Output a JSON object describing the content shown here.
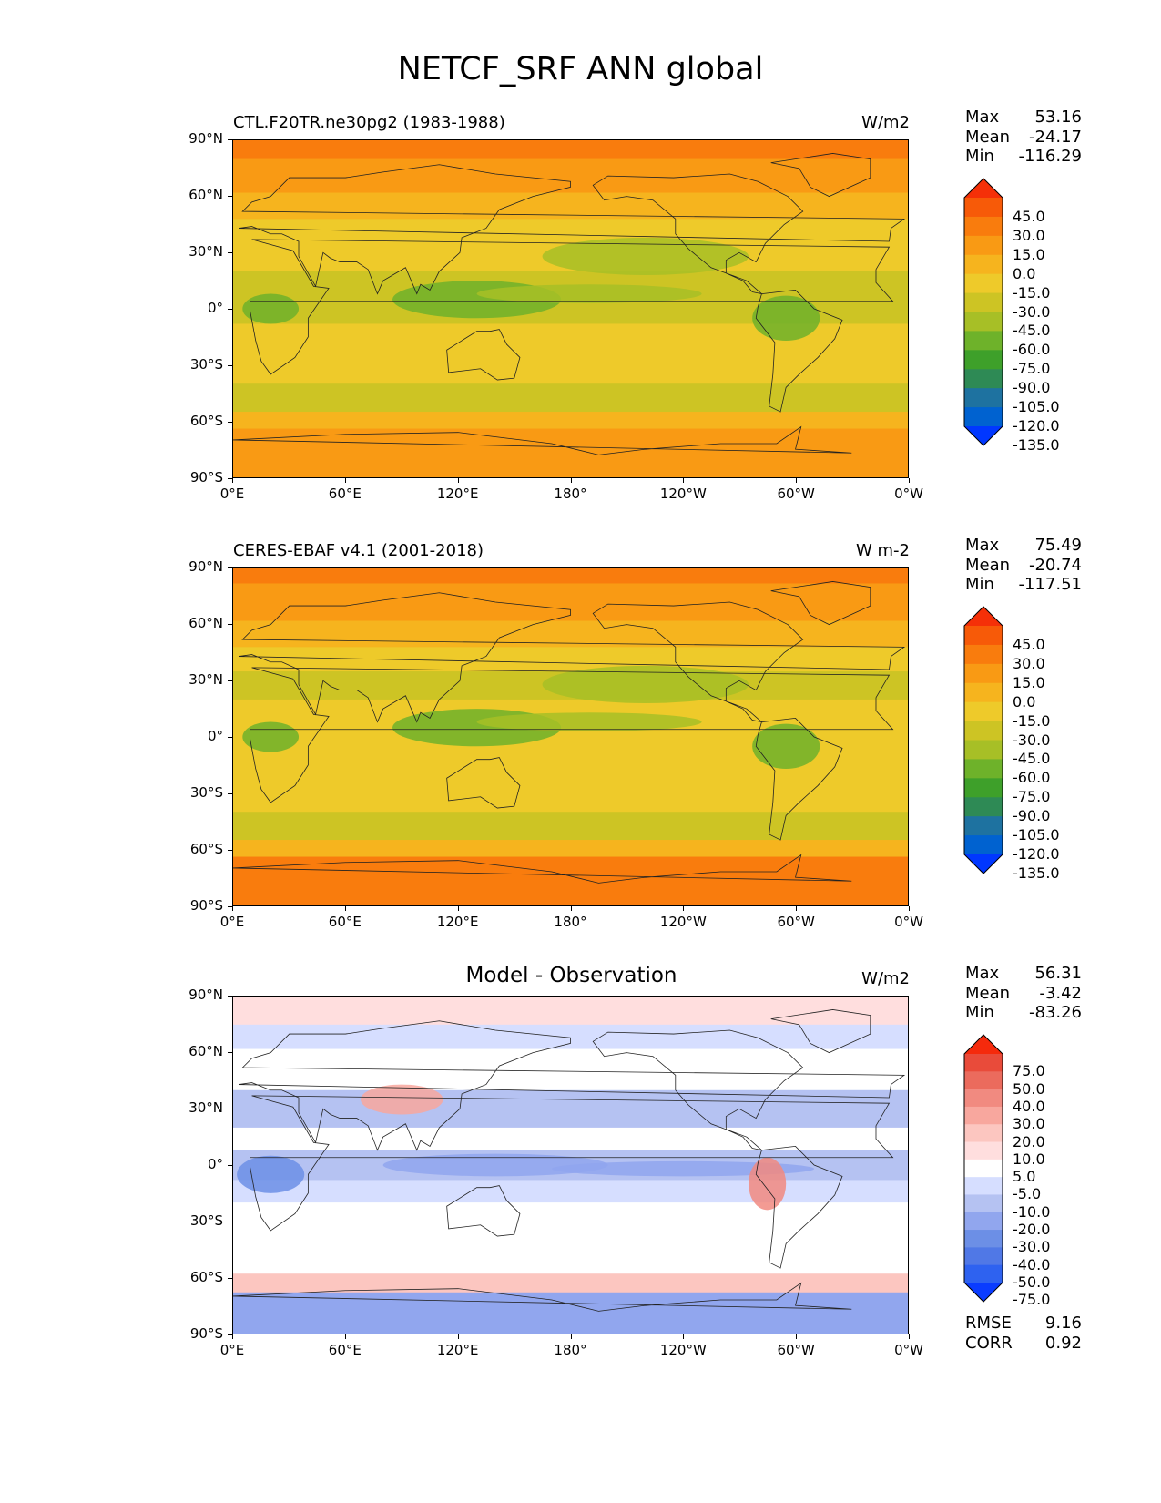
{
  "figure": {
    "title": "NETCF_SRF ANN global"
  },
  "axes": {
    "lat_labels": [
      "90°N",
      "60°N",
      "30°N",
      "0°",
      "30°S",
      "60°S",
      "90°S"
    ],
    "lon_labels": [
      "0°E",
      "60°E",
      "120°E",
      "180°",
      "120°W",
      "60°W",
      "0°W"
    ]
  },
  "panels": [
    {
      "title": "CTL.F20TR.ne30pg2 (1983-1988)",
      "units": "W/m2",
      "stats": {
        "max_label": "Max",
        "max": "53.16",
        "mean_label": "Mean",
        "mean": "-24.17",
        "min_label": "Min",
        "min": "-116.29"
      },
      "colorbar_labels": [
        "45.0",
        "30.0",
        "15.0",
        "0.0",
        "-15.0",
        "-30.0",
        "-45.0",
        "-60.0",
        "-75.0",
        "-90.0",
        "-105.0",
        "-120.0",
        "-135.0"
      ]
    },
    {
      "title": "CERES-EBAF v4.1 (2001-2018)",
      "units": "W m-2",
      "stats": {
        "max_label": "Max",
        "max": "75.49",
        "mean_label": "Mean",
        "mean": "-20.74",
        "min_label": "Min",
        "min": "-117.51"
      },
      "colorbar_labels": [
        "45.0",
        "30.0",
        "15.0",
        "0.0",
        "-15.0",
        "-30.0",
        "-45.0",
        "-60.0",
        "-75.0",
        "-90.0",
        "-105.0",
        "-120.0",
        "-135.0"
      ]
    },
    {
      "title": "Model - Observation",
      "units": "W/m2",
      "stats": {
        "max_label": "Max",
        "max": "56.31",
        "mean_label": "Mean",
        "mean": "-3.42",
        "min_label": "Min",
        "min": "-83.26"
      },
      "colorbar_labels": [
        "75.0",
        "50.0",
        "40.0",
        "30.0",
        "20.0",
        "10.0",
        "5.0",
        "-5.0",
        "-10.0",
        "-20.0",
        "-30.0",
        "-40.0",
        "-50.0",
        "-75.0"
      ],
      "metrics": {
        "rmse_label": "RMSE",
        "rmse": "9.16",
        "corr_label": "CORR",
        "corr": "0.92"
      }
    }
  ],
  "colors": {
    "abs_scale": [
      "#0037ff",
      "#0062d0",
      "#1e72a0",
      "#2e8a55",
      "#3ea02a",
      "#6eb22a",
      "#a7bf26",
      "#cdc424",
      "#eeca2a",
      "#f6b41e",
      "#f99a14",
      "#f97c0d",
      "#f75a08",
      "#f53008"
    ],
    "diff_scale": [
      "#0a3cff",
      "#2e62f0",
      "#5078e6",
      "#6c8fe6",
      "#91a6ee",
      "#b5c2f2",
      "#d6deff",
      "#ffffff",
      "#ffdede",
      "#fcc6c0",
      "#f8a79e",
      "#f18a80",
      "#eb6b5d",
      "#e94b3a",
      "#f52a0c"
    ],
    "coastline": "#222222"
  }
}
